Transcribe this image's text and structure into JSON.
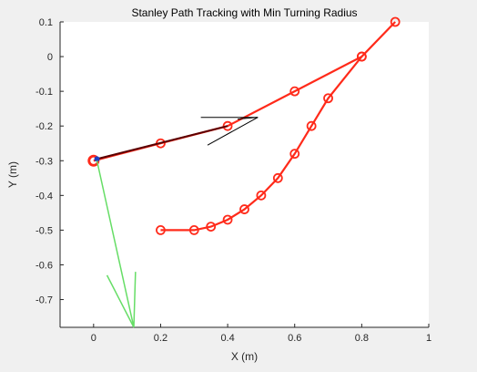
{
  "colors": {
    "figure_bg": "#f0f0f0",
    "axes_bg": "#ffffff",
    "axis_line": "#262626",
    "reference_path": "#ff2a1a",
    "traveled_path": "#5a0000",
    "robot": "#1f3fbf",
    "heading_arrow": "#000000",
    "steering_arrow": "#66dd66"
  },
  "chart_data": {
    "type": "line",
    "title": "Stanley Path Tracking with Min Turning Radius",
    "xlabel": "X (m)",
    "ylabel": "Y (m)",
    "xlim": [
      -0.1,
      1.0
    ],
    "ylim": [
      -0.78,
      0.1
    ],
    "xticks": [
      0,
      0.2,
      0.4,
      0.6,
      0.8,
      1
    ],
    "xtick_labels": [
      "0",
      "0.2",
      "0.4",
      "0.6",
      "0.8",
      "1"
    ],
    "yticks": [
      0.1,
      0,
      -0.1,
      -0.2,
      -0.3,
      -0.4,
      -0.5,
      -0.6,
      -0.7
    ],
    "ytick_labels": [
      "0.1",
      "0",
      "-0.1",
      "-0.2",
      "-0.3",
      "-0.4",
      "-0.5",
      "-0.6",
      "-0.7"
    ],
    "grid": false,
    "series": [
      {
        "role": "reference-path",
        "color": "#ff2a1a",
        "marker": "circle",
        "x": [
          0,
          0.2,
          0.4,
          0.6,
          0.8,
          0.9,
          0.8,
          0.7,
          0.65,
          0.6,
          0.55,
          0.5,
          0.45,
          0.4,
          0.35,
          0.3,
          0.2
        ],
        "y": [
          -0.3,
          -0.25,
          -0.2,
          -0.1,
          0,
          0.1,
          0,
          -0.12,
          -0.2,
          -0.28,
          -0.35,
          -0.4,
          -0.44,
          -0.47,
          -0.49,
          -0.5,
          -0.5
        ]
      },
      {
        "role": "traveled-path",
        "color": "#5a0000",
        "x": [
          0.01,
          0.4
        ],
        "y": [
          -0.295,
          -0.2
        ]
      }
    ],
    "robot_position": {
      "x": 0.01,
      "y": -0.295
    },
    "start_marker": {
      "x": 0,
      "y": -0.3
    },
    "heading_arrow": {
      "color": "#000000",
      "tail": {
        "x": 0.32,
        "y": -0.175
      },
      "head": {
        "x": 0.49,
        "y": -0.175
      },
      "barbs": [
        {
          "x": 0.43,
          "y": -0.18
        },
        {
          "x": 0.34,
          "y": -0.255
        }
      ],
      "barb_apex": {
        "x": 0.49,
        "y": -0.175
      }
    },
    "steering_arrow": {
      "color": "#66dd66",
      "tail": {
        "x": 0.01,
        "y": -0.3
      },
      "head": {
        "x": 0.12,
        "y": -0.78
      },
      "barbs": [
        {
          "x": 0.04,
          "y": -0.63
        },
        {
          "x": 0.125,
          "y": -0.62
        }
      ]
    }
  }
}
